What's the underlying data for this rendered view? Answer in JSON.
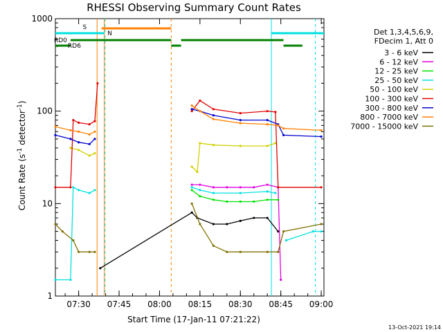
{
  "chart_data": {
    "type": "line",
    "title": "RHESSI Observing Summary Count Rates",
    "xlabel": "Start Time (17-Jan-11 07:21:22)",
    "ylabel_main": "Count Rate (s",
    "ylabel_sup1": "-1",
    "ylabel_mid": " detector",
    "ylabel_sup2": "-1",
    "ylabel_end": ")",
    "yscale": "log",
    "ylim": [
      1,
      1000
    ],
    "xlim": [
      "07:21:22",
      "09:01:00"
    ],
    "x_ticks": [
      "07:30",
      "07:45",
      "08:00",
      "08:15",
      "08:30",
      "08:45",
      "09:00"
    ],
    "y_ticks": [
      "1",
      "10",
      "100",
      "1000"
    ],
    "legend_header": [
      "Det 1,3,4,5,6,9,",
      "FDecim 1, Att 0"
    ],
    "series": [
      {
        "name": "3 - 6 keV",
        "color": "#000000",
        "points": [
          [
            "07:21:22",
            null
          ],
          [
            "07:30:00",
            null
          ],
          [
            "07:36:00",
            null
          ],
          [
            "07:38:00",
            2
          ],
          [
            "08:12:00",
            8
          ],
          [
            "08:14:00",
            7
          ],
          [
            "08:20:00",
            6
          ],
          [
            "08:25:00",
            6
          ],
          [
            "08:30:00",
            6.5
          ],
          [
            "08:35:00",
            7
          ],
          [
            "08:40:00",
            7
          ],
          [
            "08:44:00",
            5
          ],
          [
            "08:46:00",
            null
          ]
        ]
      },
      {
        "name": "6 - 12 keV",
        "color": "#e000e0",
        "points": [
          [
            "07:21:22",
            null
          ],
          [
            "08:12:00",
            16
          ],
          [
            "08:15:00",
            16
          ],
          [
            "08:20:00",
            15
          ],
          [
            "08:25:00",
            15
          ],
          [
            "08:30:00",
            15
          ],
          [
            "08:35:00",
            15
          ],
          [
            "08:40:00",
            16
          ],
          [
            "08:44:00",
            15
          ],
          [
            "08:45:00",
            1.5
          ],
          [
            "08:46:00",
            null
          ]
        ]
      },
      {
        "name": "12 - 25 keV",
        "color": "#00e000",
        "points": [
          [
            "08:12:00",
            14
          ],
          [
            "08:15:00",
            12
          ],
          [
            "08:20:00",
            11
          ],
          [
            "08:25:00",
            10.5
          ],
          [
            "08:30:00",
            10.5
          ],
          [
            "08:35:00",
            10.5
          ],
          [
            "08:40:00",
            11
          ],
          [
            "08:44:00",
            11
          ],
          [
            "08:46:00",
            null
          ]
        ]
      },
      {
        "name": "25 - 50 keV",
        "color": "#00e0e0",
        "points": [
          [
            "07:21:22",
            1.5
          ],
          [
            "07:27:00",
            1.5
          ],
          [
            "07:28:00",
            15
          ],
          [
            "07:30:00",
            14
          ],
          [
            "07:34:00",
            13
          ],
          [
            "07:36:00",
            14
          ],
          [
            "07:37:00",
            null
          ],
          [
            "08:12:00",
            15
          ],
          [
            "08:15:00",
            14
          ],
          [
            "08:20:00",
            13
          ],
          [
            "08:30:00",
            13
          ],
          [
            "08:40:00",
            13.5
          ],
          [
            "08:43:00",
            13
          ],
          [
            "08:44:00",
            null
          ],
          [
            "08:47:00",
            4
          ],
          [
            "08:57:00",
            5
          ],
          [
            "09:00:00",
            5
          ]
        ]
      },
      {
        "name": "50 - 100 keV",
        "color": "#d0d000",
        "points": [
          [
            "07:27:00",
            40
          ],
          [
            "07:30:00",
            38
          ],
          [
            "07:34:00",
            33
          ],
          [
            "07:36:00",
            35
          ],
          [
            "07:37:00",
            null
          ],
          [
            "08:12:00",
            25
          ],
          [
            "08:14:00",
            22
          ],
          [
            "08:15:00",
            45
          ],
          [
            "08:20:00",
            43
          ],
          [
            "08:30:00",
            42
          ],
          [
            "08:40:00",
            42
          ],
          [
            "08:43:00",
            45
          ],
          [
            "08:44:00",
            null
          ]
        ]
      },
      {
        "name": "100 - 300 keV",
        "color": "#e00000",
        "points": [
          [
            "07:21:22",
            15
          ],
          [
            "07:27:00",
            15
          ],
          [
            "07:28:00",
            80
          ],
          [
            "07:30:00",
            75
          ],
          [
            "07:34:00",
            72
          ],
          [
            "07:36:00",
            78
          ],
          [
            "07:37:00",
            200
          ],
          [
            "07:37:30",
            null
          ],
          [
            "08:12:00",
            100
          ],
          [
            "08:15:00",
            130
          ],
          [
            "08:20:00",
            105
          ],
          [
            "08:30:00",
            95
          ],
          [
            "08:40:00",
            100
          ],
          [
            "08:43:00",
            98
          ],
          [
            "08:44:00",
            15
          ],
          [
            "09:00:00",
            15
          ]
        ]
      },
      {
        "name": "300 - 800 keV",
        "color": "#0000d0",
        "points": [
          [
            "07:21:22",
            55
          ],
          [
            "07:27:00",
            50
          ],
          [
            "07:30:00",
            46
          ],
          [
            "07:34:00",
            44
          ],
          [
            "07:36:00",
            50
          ],
          [
            "07:37:00",
            null
          ],
          [
            "08:12:00",
            105
          ],
          [
            "08:15:00",
            100
          ],
          [
            "08:20:00",
            90
          ],
          [
            "08:30:00",
            80
          ],
          [
            "08:40:00",
            80
          ],
          [
            "08:44:00",
            72
          ],
          [
            "08:46:00",
            55
          ],
          [
            "09:00:00",
            53
          ]
        ]
      },
      {
        "name": "800 - 7000 keV",
        "color": "#ff8000",
        "points": [
          [
            "07:21:22",
            68
          ],
          [
            "07:27:00",
            62
          ],
          [
            "07:30:00",
            60
          ],
          [
            "07:34:00",
            56
          ],
          [
            "07:36:00",
            60
          ],
          [
            "07:37:00",
            null
          ],
          [
            "08:12:00",
            115
          ],
          [
            "08:15:00",
            100
          ],
          [
            "08:20:00",
            82
          ],
          [
            "08:30:00",
            74
          ],
          [
            "08:40:00",
            72
          ],
          [
            "08:44:00",
            70
          ],
          [
            "08:46:00",
            65
          ],
          [
            "09:00:00",
            62
          ]
        ]
      },
      {
        "name": "7000 - 15000 keV",
        "color": "#807000",
        "points": [
          [
            "07:21:22",
            6
          ],
          [
            "07:24:00",
            5
          ],
          [
            "07:28:00",
            4
          ],
          [
            "07:30:00",
            3
          ],
          [
            "07:34:00",
            3
          ],
          [
            "07:36:00",
            3
          ],
          [
            "07:37:00",
            null
          ],
          [
            "08:12:00",
            10
          ],
          [
            "08:15:00",
            6
          ],
          [
            "08:20:00",
            3.5
          ],
          [
            "08:25:00",
            3
          ],
          [
            "08:30:00",
            3
          ],
          [
            "08:40:00",
            3
          ],
          [
            "08:44:00",
            3
          ],
          [
            "08:46:00",
            5
          ],
          [
            "09:00:00",
            6
          ]
        ]
      }
    ],
    "markers": [
      {
        "label": "S",
        "color": "#ff8000",
        "y_text": "S"
      },
      {
        "label": "N",
        "color": "#00e0e0",
        "y_text": "N"
      },
      {
        "label": "RD0",
        "color": "#008000",
        "y_text": "RD0"
      },
      {
        "label": "RD6",
        "color": "#008000",
        "y_text": "RD6"
      }
    ],
    "timestamp": "13-Oct-2021 19:14",
    "grid": false
  }
}
